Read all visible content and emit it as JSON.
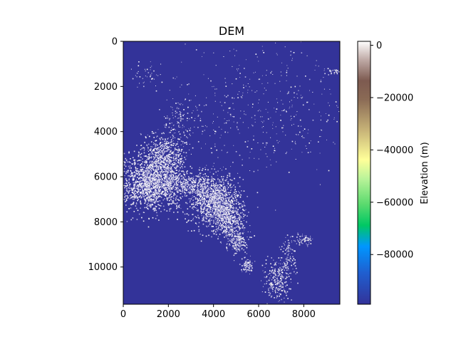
{
  "chart_data": {
    "type": "heatmap",
    "title": "DEM",
    "xlabel": "",
    "ylabel": "",
    "x_ticks": [
      0,
      2000,
      4000,
      6000,
      8000
    ],
    "y_ticks": [
      0,
      2000,
      4000,
      6000,
      8000,
      10000
    ],
    "xlim": [
      0,
      9600
    ],
    "ylim": [
      11650,
      0
    ],
    "grid": false,
    "colorbar": {
      "label": "Elevation (m)",
      "ticks": [
        0,
        -20000,
        -40000,
        -60000,
        -80000
      ],
      "range": [
        -99000,
        1500
      ],
      "colormap": "terrain",
      "colors": [
        "#333399",
        "#0096ff",
        "#00c864",
        "#88e888",
        "#ffff99",
        "#c8b478",
        "#7d5a50",
        "#bfaaa6",
        "#ffffff"
      ]
    },
    "background_value": -99000,
    "data_description": "Mostly nodata fill; scattered land pixels near 0 m elevation"
  }
}
